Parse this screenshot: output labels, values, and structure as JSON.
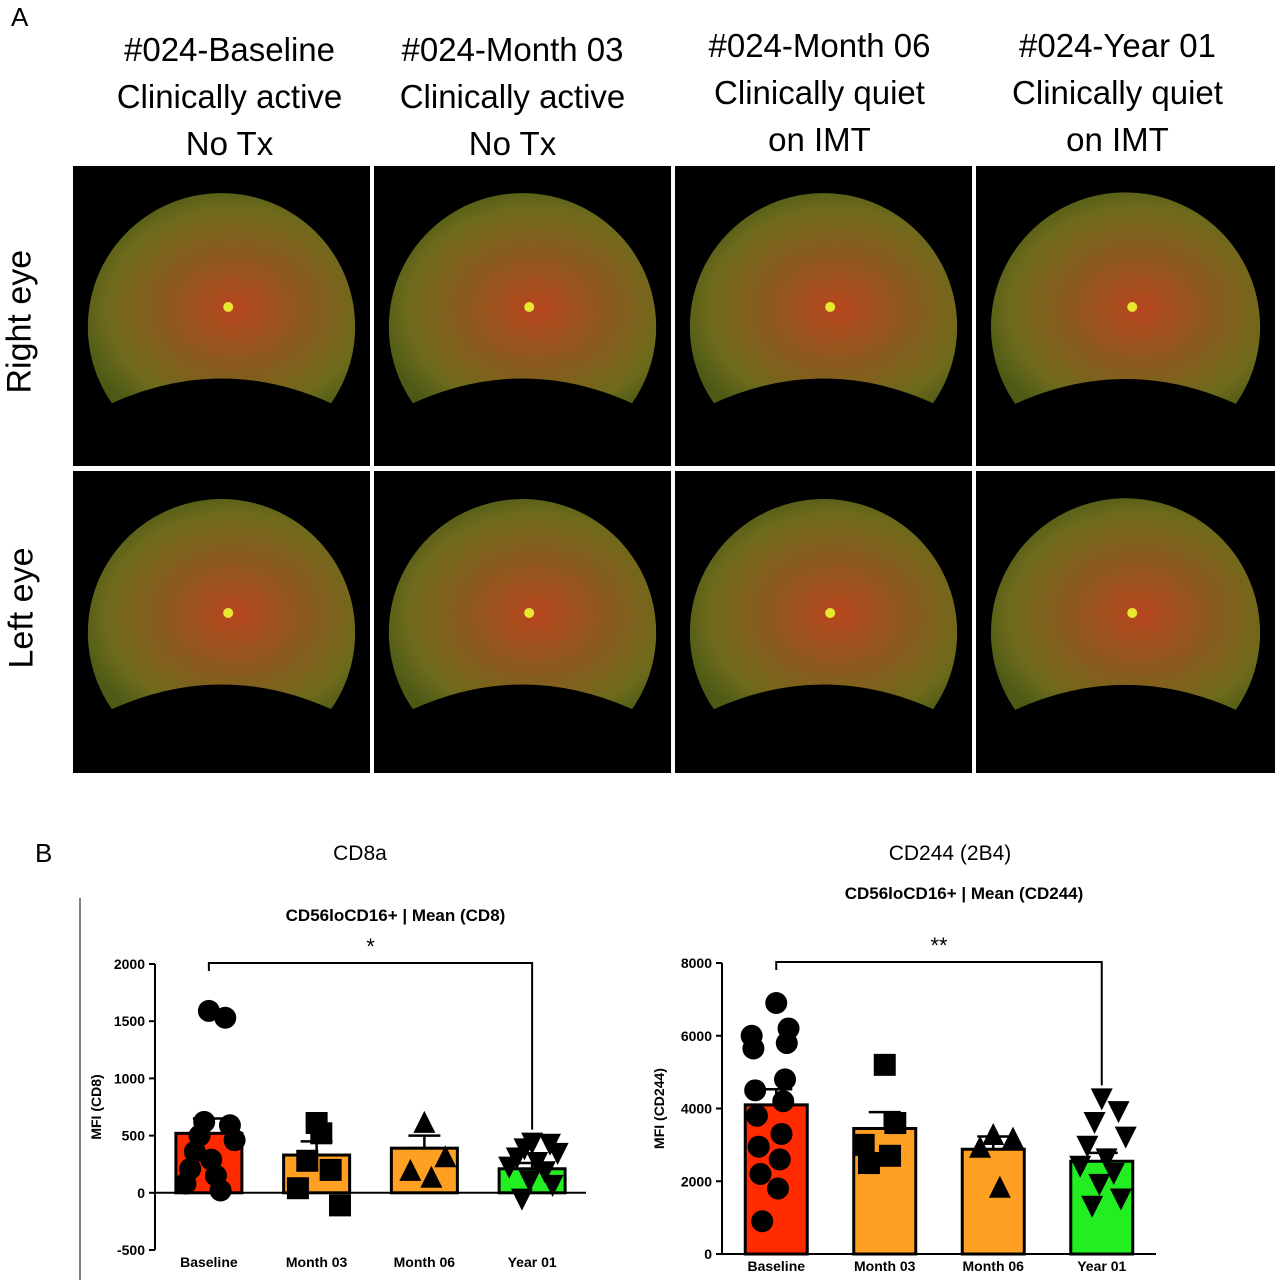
{
  "panel_a": {
    "letter": "A",
    "columns": [
      {
        "line1": "#024-Baseline",
        "line2": "Clinically active",
        "line3": "No Tx"
      },
      {
        "line1": "#024-Month 03",
        "line2": "Clinically active",
        "line3": "No Tx"
      },
      {
        "line1": "#024-Month 06",
        "line2": "Clinically quiet",
        "line3": "on IMT"
      },
      {
        "line1": "#024-Year 01",
        "line2": "Clinically quiet",
        "line3": "on IMT"
      }
    ],
    "rows": [
      "Right eye",
      "Left eye"
    ]
  },
  "panel_b": {
    "letter": "B",
    "left_heading": "CD8a",
    "right_heading": "CD244 (2B4)"
  },
  "colors": {
    "baseline": "#ff2a00",
    "month03": "#ffa023",
    "month06": "#ffa023",
    "year01": "#22ee22"
  },
  "chart_data": [
    {
      "type": "bar",
      "title": "CD56loCD16+ | Mean (CD8)",
      "ylabel": "MFI (CD8)",
      "categories": [
        "Baseline",
        "Month 03",
        "Month 06",
        "Year 01"
      ],
      "values": [
        520,
        330,
        390,
        210
      ],
      "sem": [
        130,
        120,
        110,
        50
      ],
      "ylim": [
        -500,
        2000
      ],
      "yticks": [
        "-500",
        "0",
        "500",
        "1000",
        "1500",
        "2000"
      ],
      "significance": {
        "from": "Baseline",
        "to": "Year 01",
        "label": "*"
      },
      "points": [
        [
          1590,
          1530,
          620,
          590,
          500,
          460,
          360,
          290,
          210,
          150,
          80,
          20
        ],
        [
          610,
          520,
          280,
          200,
          40,
          -110
        ],
        [
          620,
          320,
          200,
          140
        ],
        [
          430,
          420,
          380,
          340,
          300,
          260,
          220,
          180,
          100,
          60,
          -60
        ]
      ]
    },
    {
      "type": "bar",
      "title": "CD56loCD16+ | Mean (CD244)",
      "ylabel": "MFI (CD244)",
      "categories": [
        "Baseline",
        "Month 03",
        "Month 06",
        "Year 01"
      ],
      "values": [
        4100,
        3450,
        2880,
        2550
      ],
      "sem": [
        430,
        450,
        350,
        230
      ],
      "ylim": [
        0,
        8000
      ],
      "yticks": [
        "0",
        "2000",
        "4000",
        "6000",
        "8000"
      ],
      "significance": {
        "from": "Baseline",
        "to": "Year 01",
        "label": "**"
      },
      "points": [
        [
          6900,
          6200,
          6000,
          5800,
          5650,
          4800,
          4500,
          4200,
          3800,
          3300,
          2950,
          2600,
          2200,
          1800,
          900
        ],
        [
          5200,
          3600,
          3000,
          2700,
          2500
        ],
        [
          3300,
          3200,
          2950,
          1850
        ],
        [
          4250,
          3900,
          3600,
          3200,
          2950,
          2600,
          2400,
          2200,
          1900,
          1500,
          1300
        ]
      ]
    }
  ]
}
